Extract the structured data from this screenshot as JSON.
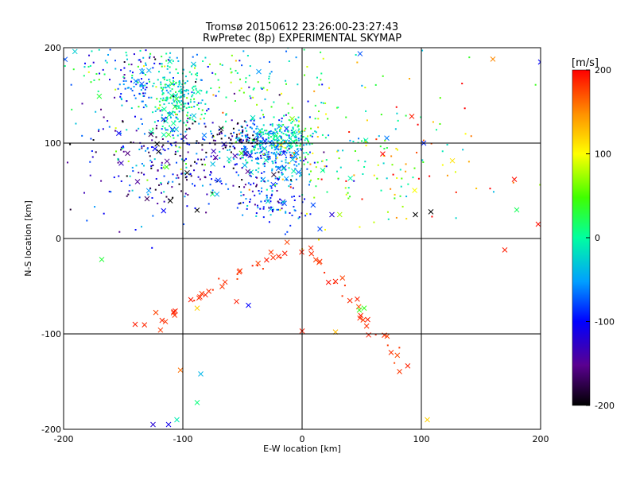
{
  "chart_data": {
    "type": "scatter",
    "title_line1": "Tromsø 20150612 23:26:00-23:27:43",
    "title_line2": "RwPretec (8p) EXPERIMENTAL SKYMAP",
    "xlabel": "E-W location [km]",
    "ylabel": "N-S location [km]",
    "xlim": [
      -200,
      200
    ],
    "ylim": [
      -200,
      200
    ],
    "x_ticks": [
      -200,
      -100,
      0,
      100,
      200
    ],
    "y_ticks": [
      -200,
      -100,
      0,
      100,
      200
    ],
    "x_tick_labels": [
      "-200",
      "-100",
      "0",
      "100",
      "200"
    ],
    "y_tick_labels": [
      "-200",
      "-100",
      "0",
      "100",
      "200"
    ],
    "grid": true,
    "colorbar": {
      "unit": "[m/s]",
      "range": [
        -200,
        200
      ],
      "ticks": [
        200,
        100,
        0,
        -100,
        -200
      ],
      "tick_labels": [
        "200",
        "100",
        "0",
        "-100",
        "-200"
      ],
      "colormap": "rainbow"
    },
    "markers": {
      "small": "dot",
      "large": "x"
    },
    "clusters": [
      {
        "cx": -105,
        "cy": 150,
        "sx": 12,
        "sy": 18,
        "n": 220,
        "vmu": -10,
        "vsd": 30
      },
      {
        "cx": -140,
        "cy": 155,
        "sx": 8,
        "sy": 8,
        "n": 40,
        "vmu": -60,
        "vsd": 25
      },
      {
        "cx": -30,
        "cy": 95,
        "sx": 18,
        "sy": 15,
        "n": 320,
        "vmu": -50,
        "vsd": 35
      },
      {
        "cx": -10,
        "cy": 105,
        "sx": 12,
        "sy": 10,
        "n": 100,
        "vmu": 0,
        "vsd": 30
      },
      {
        "cx": -25,
        "cy": 40,
        "sx": 14,
        "sy": 14,
        "n": 90,
        "vmu": -80,
        "vsd": 40
      },
      {
        "cx": -90,
        "cy": 80,
        "sx": 40,
        "sy": 30,
        "n": 260,
        "vmu": -110,
        "vsd": 60
      },
      {
        "cx": -60,
        "cy": 150,
        "sx": 60,
        "sy": 40,
        "n": 220,
        "vmu": 0,
        "vsd": 60
      },
      {
        "cx": -55,
        "cy": 102,
        "sx": 12,
        "sy": 6,
        "n": 40,
        "vmu": -190,
        "vsd": 20
      },
      {
        "cx": 40,
        "cy": 80,
        "sx": 40,
        "sy": 30,
        "n": 120,
        "vmu": 30,
        "vsd": 60
      },
      {
        "cx": -150,
        "cy": 180,
        "sx": 35,
        "sy": 12,
        "n": 80,
        "vmu": -50,
        "vsd": 80
      },
      {
        "cx": -130,
        "cy": 90,
        "sx": 25,
        "sy": 30,
        "n": 80,
        "vmu": -140,
        "vsd": 50
      },
      {
        "cx": 60,
        "cy": 100,
        "sx": 70,
        "sy": 50,
        "n": 60,
        "vmu": 150,
        "vsd": 60
      }
    ],
    "arcs": [
      {
        "from": [
          -130,
          -90
        ],
        "to": [
          -10,
          -10
        ],
        "n": 35,
        "v": 185,
        "jitter": 4
      },
      {
        "from": [
          5,
          -10
        ],
        "to": [
          88,
          -138
        ],
        "n": 30,
        "v": 185,
        "jitter": 4
      }
    ],
    "scattered": [
      {
        "x": 160,
        "y": 188,
        "v": 150
      },
      {
        "x": 178,
        "y": 62,
        "v": 195
      },
      {
        "x": 198,
        "y": 15,
        "v": 195
      },
      {
        "x": 95,
        "y": 25,
        "v": -200
      },
      {
        "x": 102,
        "y": 100,
        "v": -90
      },
      {
        "x": 92,
        "y": 128,
        "v": 190
      },
      {
        "x": 200,
        "y": 185,
        "v": -100
      },
      {
        "x": 105,
        "y": -190,
        "v": 120
      },
      {
        "x": -102,
        "y": -138,
        "v": 160
      },
      {
        "x": -88,
        "y": -172,
        "v": 10
      },
      {
        "x": -105,
        "y": -190,
        "v": -10
      },
      {
        "x": -112,
        "y": -195,
        "v": -110
      },
      {
        "x": -85,
        "y": -142,
        "v": -40
      },
      {
        "x": -140,
        "y": -90,
        "v": 190
      },
      {
        "x": -125,
        "y": -195,
        "v": -120
      },
      {
        "x": 28,
        "y": -98,
        "v": 130
      },
      {
        "x": 48,
        "y": -75,
        "v": 40
      },
      {
        "x": 52,
        "y": -73,
        "v": 40
      },
      {
        "x": 55,
        "y": -85,
        "v": 190
      },
      {
        "x": -45,
        "y": -70,
        "v": -100
      },
      {
        "x": -55,
        "y": -66,
        "v": 190
      },
      {
        "x": -88,
        "y": -73,
        "v": 120
      },
      {
        "x": -168,
        "y": -22,
        "v": 30
      },
      {
        "x": 108,
        "y": 28,
        "v": -200
      },
      {
        "x": 170,
        "y": -12,
        "v": 190
      },
      {
        "x": 180,
        "y": 30,
        "v": 20
      },
      {
        "x": 28,
        "y": -45,
        "v": 190
      },
      {
        "x": 0,
        "y": -97,
        "v": 190
      },
      {
        "x": 15,
        "y": 10,
        "v": -80
      },
      {
        "x": 25,
        "y": 25,
        "v": -120
      }
    ]
  }
}
